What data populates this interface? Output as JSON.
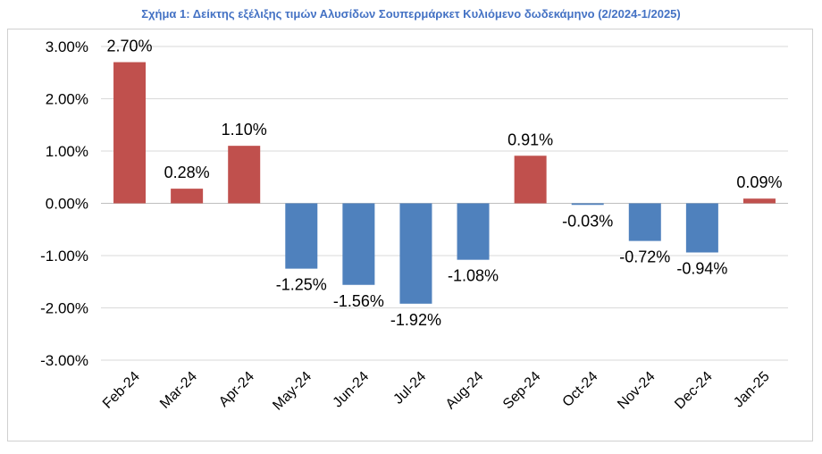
{
  "title": "Σχήμα 1: Δείκτης εξέλιξης τιμών Αλυσίδων Σουπερμάρκετ Κυλιόμενο δωδεκάμηνο (2/2024-1/2025)",
  "colors": {
    "title": "#4472c4",
    "positive": "#c0504d",
    "negative": "#4f81bd",
    "grid": "#d9d9d9",
    "axis": "#bfbfbf"
  },
  "chart_data": {
    "type": "bar",
    "title": "Σχήμα 1: Δείκτης εξέλιξης τιμών Αλυσίδων Σουπερμάρκετ Κυλιόμενο δωδεκάμηνο (2/2024-1/2025)",
    "categories": [
      "Feb-24",
      "Mar-24",
      "Apr-24",
      "May-24",
      "Jun-24",
      "Jul-24",
      "Aug-24",
      "Sep-24",
      "Oct-24",
      "Nov-24",
      "Dec-24",
      "Jan-25"
    ],
    "values": [
      2.7,
      0.28,
      1.1,
      -1.25,
      -1.56,
      -1.92,
      -1.08,
      0.91,
      -0.03,
      -0.72,
      -0.94,
      0.09
    ],
    "data_labels": [
      "2.70%",
      "0.28%",
      "1.10%",
      "-1.25%",
      "-1.56%",
      "-1.92%",
      "-1.08%",
      "0.91%",
      "-0.03%",
      "-0.72%",
      "-0.94%",
      "0.09%"
    ],
    "ylim": [
      -3,
      3
    ],
    "yticks": [
      3,
      2,
      1,
      0,
      -1,
      -2,
      -3
    ],
    "ytick_labels": [
      "3.00%",
      "2.00%",
      "1.00%",
      "0.00%",
      "-1.00%",
      "-2.00%",
      "-3.00%"
    ],
    "grid": true,
    "legend": "none"
  }
}
